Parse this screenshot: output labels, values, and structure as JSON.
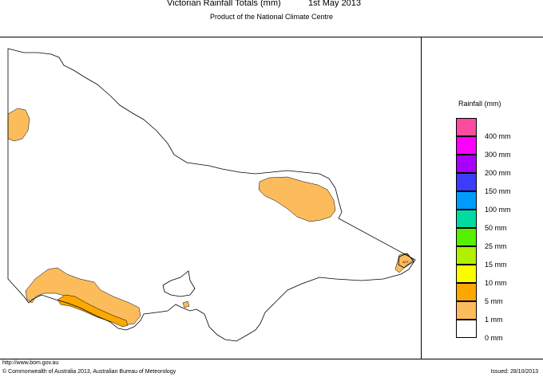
{
  "header": {
    "title": "Victorian Rainfall Totals (mm)",
    "date": "1st May 2013",
    "subtitle": "Product of the National Climate Centre"
  },
  "map": {
    "region": "Victoria",
    "regions_label": "ACT",
    "colors": {
      "coast": "#000000",
      "rain_1mm": "#fcbc5c",
      "rain_5mm": "#fca800",
      "background": "#ffffff"
    }
  },
  "legend": {
    "title": "Rainfall (mm)",
    "items": [
      {
        "label": "400 mm",
        "color": "#fc4ca0"
      },
      {
        "label": "300 mm",
        "color": "#fc00fc"
      },
      {
        "label": "200 mm",
        "color": "#a800fc"
      },
      {
        "label": "150 mm",
        "color": "#3c3cfc"
      },
      {
        "label": "100 mm",
        "color": "#009cfc"
      },
      {
        "label": "50 mm",
        "color": "#00dca0"
      },
      {
        "label": "25 mm",
        "color": "#54f000"
      },
      {
        "label": "15 mm",
        "color": "#b0f000"
      },
      {
        "label": "10 mm",
        "color": "#fcfc00"
      },
      {
        "label": "5 mm",
        "color": "#fca800"
      },
      {
        "label": "1 mm",
        "color": "#fcbc5c"
      },
      {
        "label": "0 mm",
        "color": "#ffffff"
      }
    ]
  },
  "footer": {
    "url": "http://www.bom.gov.au",
    "copyright": "© Commonwealth of Australia 2013, Australian Bureau of Meteorology",
    "issued": "Issued: 28/10/2013"
  }
}
